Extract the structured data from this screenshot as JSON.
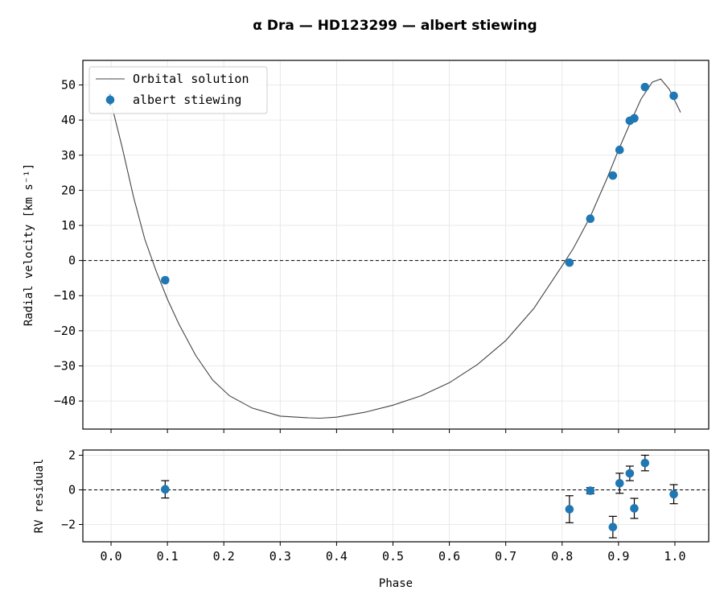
{
  "chart_data": [
    {
      "type": "scatter",
      "panel": "main",
      "title": "α  Dra  —  HD123299  —  albert  stiewing",
      "xlabel": "",
      "ylabel": "Radial velocity [km s⁻¹]",
      "xlim": [
        -0.05,
        1.06
      ],
      "ylim": [
        -48,
        57
      ],
      "xticks": [
        0.0,
        0.1,
        0.2,
        0.3,
        0.4,
        0.5,
        0.6,
        0.7,
        0.8,
        0.9,
        1.0
      ],
      "yticks": [
        -40,
        -30,
        -20,
        -10,
        0,
        10,
        20,
        30,
        40,
        50
      ],
      "ytick_labels": [
        "−40",
        "−30",
        "−20",
        "−10",
        "0",
        "10",
        "20",
        "30",
        "40",
        "50"
      ],
      "grid": true,
      "legend_position": "upper-left",
      "reference_line_y": 0,
      "series": [
        {
          "name": "Orbital solution",
          "kind": "line",
          "color": "#444444",
          "x": [
            -0.005,
            0.0,
            0.02,
            0.04,
            0.06,
            0.08,
            0.1,
            0.12,
            0.15,
            0.18,
            0.21,
            0.25,
            0.3,
            0.35,
            0.37,
            0.4,
            0.45,
            0.5,
            0.55,
            0.6,
            0.65,
            0.7,
            0.75,
            0.8,
            0.82,
            0.85,
            0.88,
            0.9,
            0.92,
            0.94,
            0.96,
            0.975,
            0.99,
            1.01
          ],
          "y": [
            48,
            45,
            32,
            18,
            6,
            -3,
            -11,
            -18,
            -27,
            -34,
            -38.5,
            -42,
            -44.3,
            -44.8,
            -44.9,
            -44.6,
            -43.2,
            -41.2,
            -38.5,
            -34.8,
            -29.6,
            -22.8,
            -13.6,
            -1.5,
            3.5,
            12.5,
            23.5,
            31.5,
            38.9,
            46.0,
            50.8,
            51.7,
            48.8,
            42.2
          ]
        },
        {
          "name": "albert stiewing",
          "kind": "points",
          "color": "#1f77b4",
          "x": [
            0.096,
            0.813,
            0.85,
            0.89,
            0.902,
            0.92,
            0.928,
            0.947,
            0.998
          ],
          "y": [
            -5.6,
            -0.6,
            11.9,
            24.2,
            31.5,
            39.8,
            40.5,
            49.4,
            46.9
          ]
        }
      ]
    },
    {
      "type": "scatter",
      "panel": "residual",
      "xlabel": "Phase",
      "ylabel": "RV residual",
      "xlim": [
        -0.05,
        1.06
      ],
      "ylim": [
        -3.0,
        2.3
      ],
      "xticks": [
        0.0,
        0.1,
        0.2,
        0.3,
        0.4,
        0.5,
        0.6,
        0.7,
        0.8,
        0.9,
        1.0
      ],
      "xtick_labels": [
        "0.0",
        "0.1",
        "0.2",
        "0.3",
        "0.4",
        "0.5",
        "0.6",
        "0.7",
        "0.8",
        "0.9",
        "1.0"
      ],
      "yticks": [
        -2,
        0,
        2
      ],
      "ytick_labels": [
        "−2",
        "0",
        "2"
      ],
      "grid": true,
      "reference_line_y": 0,
      "series": [
        {
          "name": "albert stiewing",
          "color": "#1f77b4",
          "x": [
            0.096,
            0.813,
            0.85,
            0.89,
            0.902,
            0.92,
            0.928,
            0.947,
            0.998
          ],
          "y": [
            0.03,
            -1.12,
            -0.05,
            -2.15,
            0.38,
            0.95,
            -1.07,
            1.55,
            -0.25
          ],
          "yerr": [
            0.5,
            0.78,
            0.18,
            0.62,
            0.58,
            0.42,
            0.58,
            0.45,
            0.55
          ]
        }
      ]
    }
  ]
}
